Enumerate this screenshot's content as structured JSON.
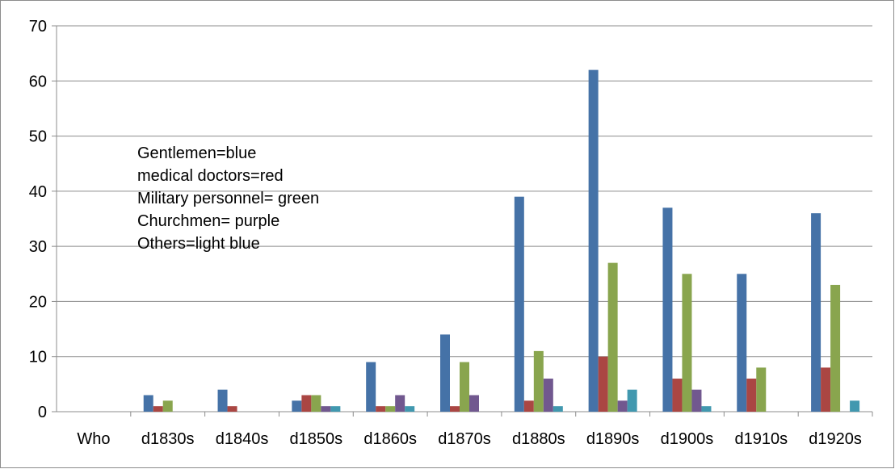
{
  "chart_data": {
    "type": "bar",
    "categories": [
      "Who",
      "d1830s",
      "d1840s",
      "d1850s",
      "d1860s",
      "d1870s",
      "d1880s",
      "d1890s",
      "d1900s",
      "d1910s",
      "d1920s"
    ],
    "series": [
      {
        "color": "#4572a7",
        "values": [
          0,
          3,
          4,
          2,
          9,
          14,
          39,
          62,
          37,
          25,
          36
        ]
      },
      {
        "color": "#aa4643",
        "values": [
          0,
          1,
          1,
          3,
          1,
          1,
          2,
          10,
          6,
          6,
          8
        ]
      },
      {
        "color": "#89a54e",
        "values": [
          0,
          2,
          0,
          3,
          1,
          9,
          11,
          27,
          25,
          8,
          23
        ]
      },
      {
        "color": "#71588f",
        "values": [
          0,
          0,
          0,
          1,
          3,
          3,
          6,
          2,
          4,
          0,
          0
        ]
      },
      {
        "color": "#4198af",
        "values": [
          0,
          0,
          0,
          1,
          1,
          0,
          1,
          4,
          1,
          0,
          2
        ]
      }
    ],
    "ylim": [
      0,
      70
    ],
    "yticks": [
      0,
      10,
      20,
      30,
      40,
      50,
      60,
      70
    ],
    "grid": true,
    "annotations": [
      "Gentlemen=blue",
      "medical doctors=red",
      "Military personnel= green",
      "Churchmen= purple",
      "Others=light blue"
    ]
  }
}
